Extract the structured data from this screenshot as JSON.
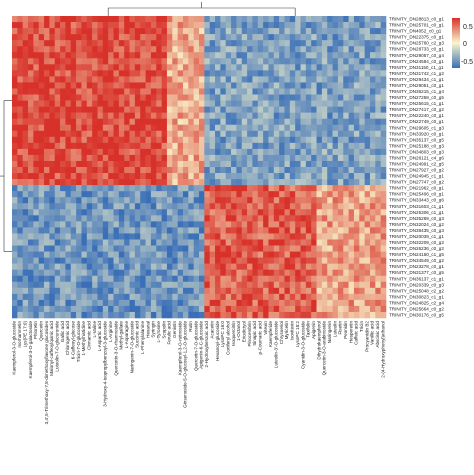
{
  "chart_data": {
    "type": "heatmap",
    "title": "",
    "xlabel": "",
    "ylabel": "",
    "color_scale": {
      "low": "#3a6fb8",
      "mid": "#f8f6cc",
      "high": "#d8312a",
      "ticks": [
        "0.5",
        "0",
        "-0.5"
      ],
      "range": [
        -0.7,
        0.7
      ]
    },
    "rows": [
      "TRINITY_DN28813_c0_g1",
      "TRINITY_DN25701_c0_g1",
      "TRINITY_DN4052_c0_g1",
      "TRINITY_DN22375_c0_g1",
      "TRINITY_DN25760_c2_g3",
      "TRINITY_DN28733_c0_g1",
      "TRINITY_DN29057_c0_g4",
      "TRINITY_DN24584_c0_g1",
      "TRINITY_DN31150_c1_g1",
      "TRINITY_DN31742_c1_g2",
      "TRINITY_DN29434_c1_g1",
      "TRINITY_DN29051_c0_g1",
      "TRINITY_DN36215_c1_g4",
      "TRINITY_DN27258_c0_g5",
      "TRINITY_DN25615_c1_g1",
      "TRINITY_DN27417_c0_g2",
      "TRINITY_DN22240_c0_g1",
      "TRINITY_DN22749_c0_g1",
      "TRINITY_DN29605_c1_g3",
      "TRINITY_DN33920_c0_g1",
      "TRINITY_DN35137_c0_g5",
      "TRINITY_DN25188_c0_g3",
      "TRINITY_DN34803_c0_g3",
      "TRINITY_DN26121_c4_g6",
      "TRINITY_DN24991_c2_g5",
      "TRINITY_DN27927_c0_g2",
      "TRINITY_DN24945_c1_g1",
      "TRINITY_DN27747_c0_g2",
      "TRINITY_DN21962_c0_g1",
      "TRINITY_DN25406_c0_g1",
      "TRINITY_DN33443_c0_g6",
      "TRINITY_DN31603_c1_g1",
      "TRINITY_DN25306_c1_g1",
      "TRINITY_DN35269_c0_g3",
      "TRINITY_DN32024_c0_g2",
      "TRINITY_DN36435_c0_g3",
      "TRINITY_DN20039_c1_g1",
      "TRINITY_DN32209_c0_g2",
      "TRINITY_DN26236_c0_g2",
      "TRINITY_DN24150_c1_g5",
      "TRINITY_DN34549_c0_g2",
      "TRINITY_DN23278_c0_g1",
      "TRINITY_DN31377_c0_g5",
      "TRINITY_DN36137_c1_g1",
      "TRINITY_DN20339_c0_g3",
      "TRINITY_DN25048_c2_g2",
      "TRINITY_DN30823_c1_g1",
      "TRINITY_DN24825_c2_g4",
      "TRINITY_DN25664_c0_g2",
      "TRINITY_DN30176_c0_g5"
    ],
    "columns": [
      "Kaempferol-3-O-glucoside",
      "Isorhamnetin",
      "Lys(PE 17:0)",
      "Kaempferol-3-O-galactoside",
      "Phloretin",
      "Quercetin",
      "3,4',5-Trimethoxy-7,8-dimethoxyflavone glucosides",
      "Malonyl-caffeoylquinic acid",
      "Luteolin-7-O-glucuronide",
      "Gallic acid",
      "Chlorogenic acid",
      "6-Caffeoyl-glucose",
      "Tricin-7-O-glucoside",
      "1-Methylhistidine",
      "Cinnamic acid",
      "L-Valine",
      "L-Aspartic acid",
      "3-Hydroxy-4-isopropylbenzoyl-3-glucoside",
      "L-Arginine",
      "Quercetin-3-O-rhamnoside",
      "Methyl-gallate",
      "L-Asparagine",
      "Naringenin-7-O-glucoside",
      "Succinic acid",
      "L-Phenylalanine",
      "Hexanal",
      "Syringin",
      "L-Tyrosine",
      "Scopolin",
      "Ferulic acid",
      "Genistin",
      "Kaempferol-3-O-rutinoside",
      "Ginsenoside-5-O-glucosyl-1,2-O-glucoside",
      "Rutin",
      "Quercetin-7-O-glucoside",
      "Apigenin-6-C-glucoside",
      "2-Hydroxybenzoic acid",
      "Acacetin",
      "Hexanoyl-glucoside",
      "LysoPC 16:0",
      "Coniferyl alcohol",
      "Isoquercitrin",
      "1-Octanol",
      "Eriodictyol",
      "Pinocembrin",
      "Sinapic acid",
      "p-Coumaric acid",
      "Vitexin",
      "Kaempferide",
      "Luteolin-3'-O-glucoside",
      "Chrysoeriol",
      "Myricetin",
      "Isovitexin",
      "LysoPC 18:2",
      "Cyanidin-3-O-glucoside",
      "Taxifolin",
      "Apigenin",
      "Dihydrokaempferol",
      "Quercetin-3-O-arabinoside",
      "Naringenin",
      "Luteolin",
      "Fisetin",
      "Peonidin",
      "Hesperetin",
      "Caffeic acid",
      "Tricin",
      "Procyanidin B2",
      "Vanillic acid",
      "Abscisic acid",
      "2-(4-Hydroxyphenyl)ethanol"
    ],
    "row_groups": [
      28,
      22
    ],
    "col_groups": [
      36,
      34
    ],
    "values_note_levels": [
      "high",
      "low"
    ],
    "block_means": {
      "top_left": 0.62,
      "top_right": -0.45,
      "bottom_left": -0.5,
      "bottom_right": 0.55
    }
  }
}
